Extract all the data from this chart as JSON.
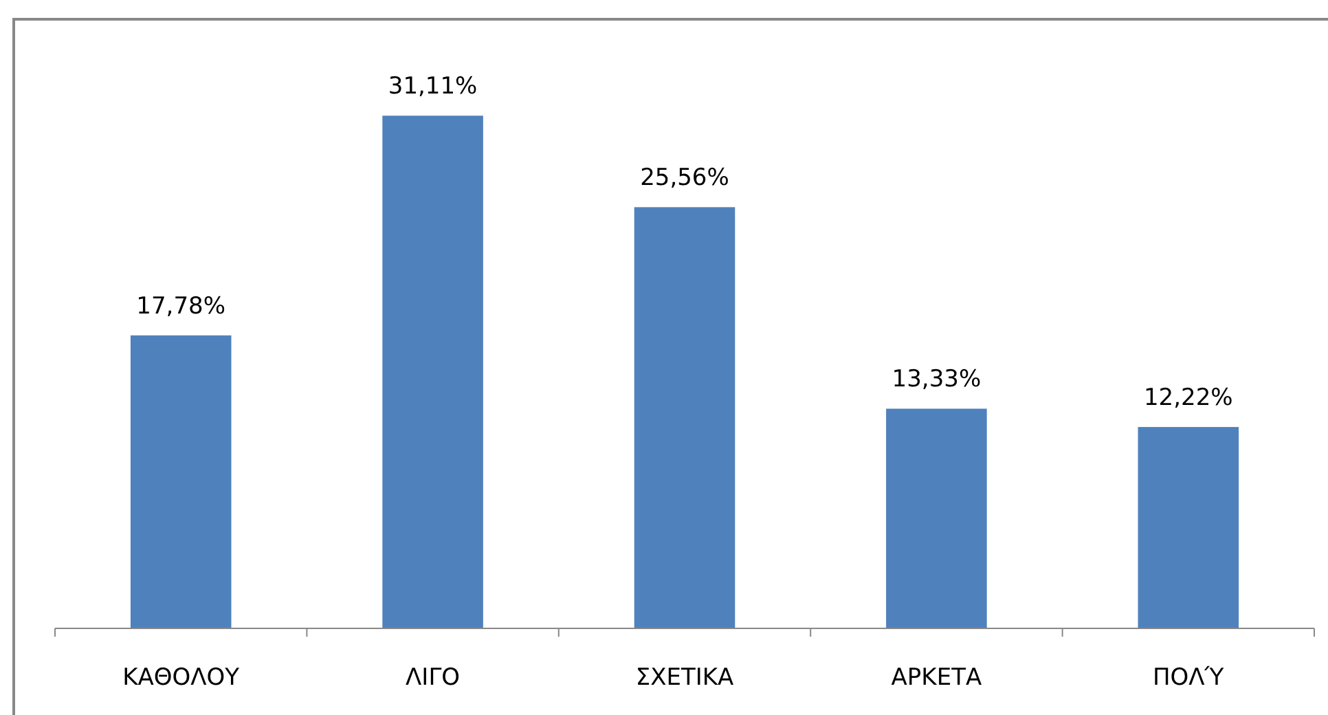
{
  "chart_data": {
    "type": "bar",
    "categories": [
      "ΚΑΘΟΛΟΥ",
      "ΛΙΓΟ",
      "ΣΧΕΤΙΚΑ",
      "ΑΡΚΕΤΑ",
      "ΠΟΛΎ"
    ],
    "values": [
      17.78,
      31.11,
      25.56,
      13.33,
      12.22
    ],
    "color": "#4f81bd",
    "value_labels": [
      "17,78%",
      "31,11%",
      "25,56%",
      "13,33%",
      "12,22%"
    ]
  }
}
